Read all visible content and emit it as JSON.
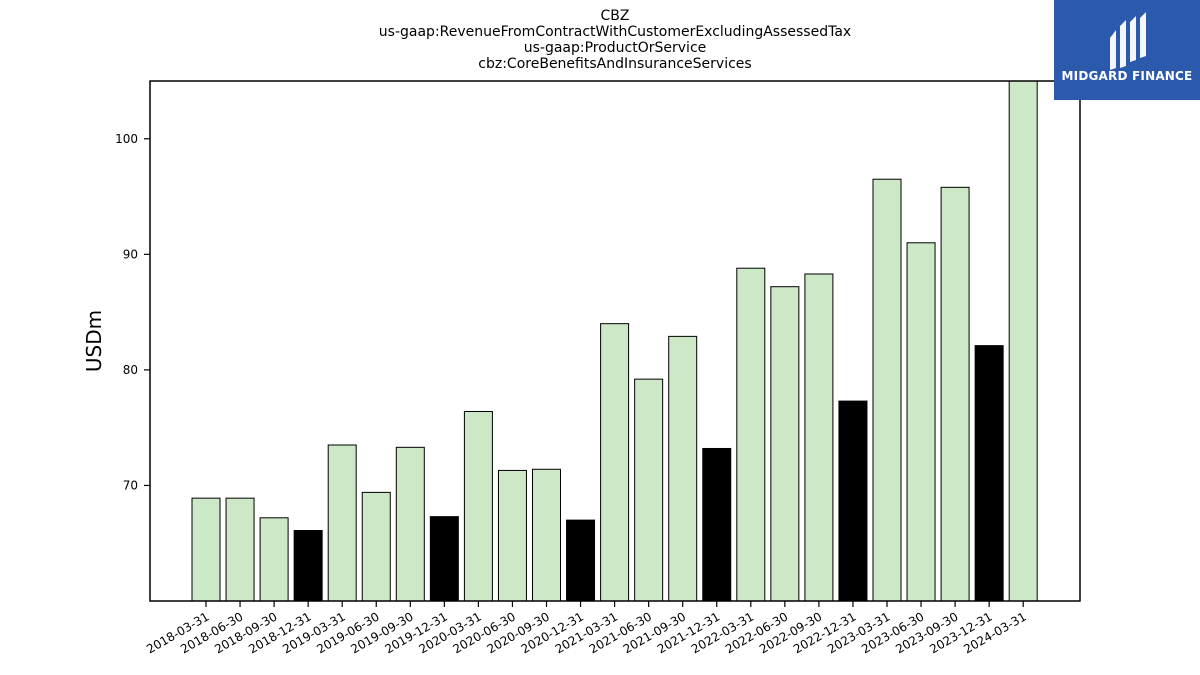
{
  "chart_data": {
    "type": "bar",
    "title_lines": [
      "CBZ",
      "us-gaap:RevenueFromContractWithCustomerExcludingAssessedTax",
      "us-gaap:ProductOrService",
      "cbz:CoreBenefitsAndInsuranceServices"
    ],
    "xlabel": "",
    "ylabel": "USDm",
    "ylim": [
      60,
      105
    ],
    "yticks": [
      70,
      80,
      90,
      100
    ],
    "grid": false,
    "categories": [
      "2018-03-31",
      "2018-06-30",
      "2018-09-30",
      "2018-12-31",
      "2019-03-31",
      "2019-06-30",
      "2019-09-30",
      "2019-12-31",
      "2020-03-31",
      "2020-06-30",
      "2020-09-30",
      "2020-12-31",
      "2021-03-31",
      "2021-06-30",
      "2021-09-30",
      "2021-12-31",
      "2022-03-31",
      "2022-06-30",
      "2022-09-30",
      "2022-12-31",
      "2023-03-31",
      "2023-06-30",
      "2023-09-30",
      "2023-12-31",
      "2024-03-31"
    ],
    "values": [
      68.9,
      68.9,
      67.2,
      66.1,
      73.5,
      69.4,
      73.3,
      67.3,
      76.4,
      71.3,
      71.4,
      67.0,
      84.0,
      79.2,
      82.9,
      73.2,
      88.8,
      87.2,
      88.3,
      77.3,
      96.5,
      91.0,
      95.8,
      82.1,
      105.2
    ],
    "colors": {
      "quarter": "#cce8c6",
      "year_end": "#000000",
      "edge": "#000000"
    }
  },
  "logo": {
    "text": "MIDGARD FINANCE",
    "background": "#2b5aad"
  }
}
